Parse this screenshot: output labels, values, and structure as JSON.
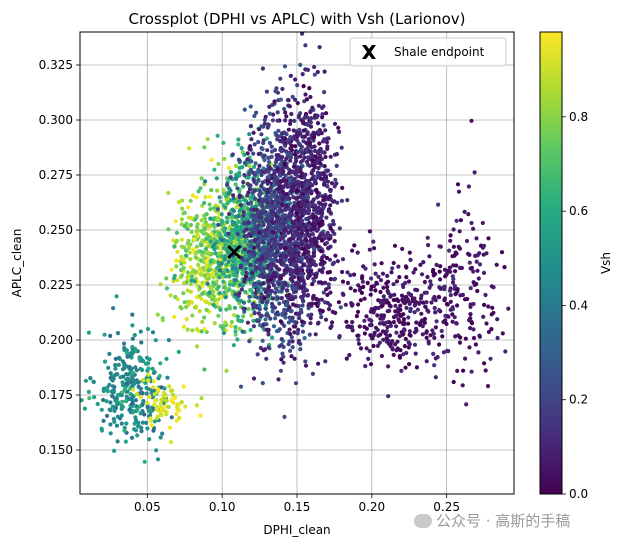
{
  "chart_data": {
    "type": "scatter",
    "title": "Crossplot (DPHI vs APLC) with Vsh (Larionov)",
    "xlabel": "DPHI_clean",
    "ylabel": "APLC_clean",
    "xlim": [
      0.005,
      0.295
    ],
    "ylim": [
      0.13,
      0.34
    ],
    "x_ticks": [
      0.05,
      0.1,
      0.15,
      0.2,
      0.25
    ],
    "x_tick_labels": [
      "0.05",
      "0.10",
      "0.15",
      "0.20",
      "0.25"
    ],
    "y_ticks": [
      0.15,
      0.175,
      0.2,
      0.225,
      0.25,
      0.275,
      0.3,
      0.325
    ],
    "y_tick_labels": [
      "0.150",
      "0.175",
      "0.200",
      "0.225",
      "0.250",
      "0.275",
      "0.300",
      "0.325"
    ],
    "grid": true,
    "colorbar": {
      "label": "Vsh",
      "colormap": "viridis",
      "range": [
        0.0,
        0.98
      ],
      "ticks": [
        0.0,
        0.2,
        0.4,
        0.6,
        0.8
      ],
      "tick_labels": [
        "0.0",
        "0.2",
        "0.4",
        "0.6",
        "0.8"
      ]
    },
    "legend": {
      "placement": "top-right",
      "entries": [
        {
          "label": "Shale endpoint",
          "marker": "X",
          "color": "#000000"
        }
      ]
    },
    "shale_endpoint": {
      "x": 0.108,
      "y": 0.24
    },
    "point_clusters": [
      {
        "x_center": 0.04,
        "y_center": 0.178,
        "x_spread": 0.012,
        "y_spread": 0.013,
        "vsh": 0.48,
        "vsh_spread": 0.08,
        "count": 300
      },
      {
        "x_center": 0.062,
        "y_center": 0.171,
        "x_spread": 0.008,
        "y_spread": 0.006,
        "vsh": 0.93,
        "vsh_spread": 0.04,
        "count": 70
      },
      {
        "x_center": 0.095,
        "y_center": 0.238,
        "x_spread": 0.014,
        "y_spread": 0.017,
        "vsh": 0.82,
        "vsh_spread": 0.09,
        "count": 600
      },
      {
        "x_center": 0.118,
        "y_center": 0.245,
        "x_spread": 0.012,
        "y_spread": 0.018,
        "vsh": 0.58,
        "vsh_spread": 0.1,
        "count": 700
      },
      {
        "x_center": 0.137,
        "y_center": 0.25,
        "x_spread": 0.012,
        "y_spread": 0.025,
        "vsh": 0.18,
        "vsh_spread": 0.07,
        "count": 1100
      },
      {
        "x_center": 0.157,
        "y_center": 0.262,
        "x_spread": 0.01,
        "y_spread": 0.025,
        "vsh": 0.09,
        "vsh_spread": 0.05,
        "count": 700
      },
      {
        "x_center": 0.22,
        "y_center": 0.213,
        "x_spread": 0.028,
        "y_spread": 0.013,
        "vsh": 0.05,
        "vsh_spread": 0.04,
        "count": 450
      },
      {
        "x_center": 0.265,
        "y_center": 0.235,
        "x_spread": 0.01,
        "y_spread": 0.022,
        "vsh": 0.05,
        "vsh_spread": 0.04,
        "count": 90
      }
    ]
  },
  "watermark": {
    "text": "公众号 · 高斯的手稿"
  }
}
